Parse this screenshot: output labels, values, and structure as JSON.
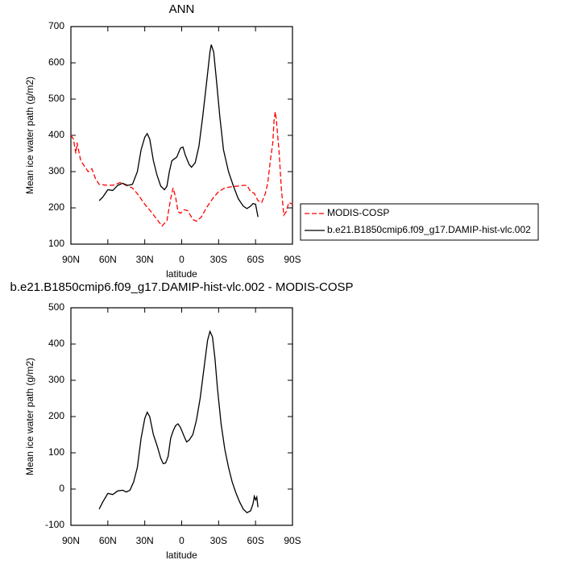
{
  "chart_data": [
    {
      "type": "line",
      "title": "ANN",
      "x_label": "latitude",
      "y_label": "Mean ice water path (g/m2)",
      "xlim": [
        90,
        -90
      ],
      "xticks": [
        {
          "value": 90,
          "label": "90N"
        },
        {
          "value": 60,
          "label": "60N"
        },
        {
          "value": 30,
          "label": "30N"
        },
        {
          "value": 0,
          "label": "0"
        },
        {
          "value": -30,
          "label": "30S"
        },
        {
          "value": -60,
          "label": "60S"
        },
        {
          "value": -90,
          "label": "90S"
        }
      ],
      "ylim": [
        100,
        700
      ],
      "yticks": [
        100,
        200,
        300,
        400,
        500,
        600,
        700
      ],
      "legend": "outside-right",
      "series": [
        {
          "name": "MODIS-COSP",
          "color": "#ff0000",
          "line_style": "dashed",
          "x": [
            90,
            88,
            86,
            85,
            82,
            80,
            76,
            73,
            70,
            67,
            60,
            55,
            50,
            45,
            40,
            35,
            30,
            25,
            20,
            16,
            12,
            9,
            7,
            5,
            3,
            1,
            -2,
            -5,
            -9,
            -12,
            -16,
            -20,
            -25,
            -30,
            -35,
            -40,
            -45,
            -50,
            -53,
            -56,
            -59,
            -62,
            -65,
            -68,
            -70,
            -72,
            -74,
            -75,
            -76,
            -77,
            -79,
            -81,
            -83,
            -85,
            -87,
            -90
          ],
          "values": [
            400,
            390,
            350,
            380,
            330,
            320,
            300,
            308,
            280,
            265,
            262,
            263,
            270,
            262,
            255,
            235,
            210,
            190,
            168,
            150,
            165,
            225,
            255,
            230,
            190,
            185,
            195,
            192,
            168,
            163,
            175,
            200,
            225,
            245,
            255,
            258,
            260,
            262,
            262,
            245,
            240,
            220,
            215,
            240,
            270,
            330,
            380,
            440,
            465,
            440,
            360,
            250,
            180,
            190,
            215,
            210
          ]
        },
        {
          "name": "b.e21.B1850cmip6.f09_g17.DAMIP-hist-vlc.002",
          "color": "#000000",
          "line_style": "solid",
          "x": [
            67,
            64,
            60,
            56,
            52,
            48,
            44,
            40,
            36,
            33,
            30,
            28,
            26,
            23,
            20,
            17,
            14,
            12,
            10,
            8,
            6,
            4,
            1,
            -1,
            -3,
            -6,
            -8,
            -11,
            -14,
            -17,
            -20,
            -23,
            -24,
            -26,
            -28,
            -31,
            -34,
            -38,
            -42,
            -46,
            -50,
            -53,
            -56,
            -58,
            -60,
            -62
          ],
          "values": [
            220,
            230,
            250,
            248,
            262,
            268,
            262,
            265,
            300,
            360,
            395,
            405,
            390,
            330,
            290,
            260,
            250,
            260,
            300,
            330,
            335,
            340,
            365,
            368,
            345,
            320,
            312,
            325,
            370,
            450,
            540,
            630,
            650,
            630,
            560,
            450,
            360,
            300,
            260,
            225,
            205,
            198,
            205,
            212,
            210,
            175
          ]
        }
      ]
    },
    {
      "type": "line",
      "title": "b.e21.B1850cmip6.f09_g17.DAMIP-hist-vlc.002 - MODIS-COSP",
      "x_label": "latitude",
      "y_label": "Mean ice water path (g/m2)",
      "xlim": [
        90,
        -90
      ],
      "xticks": [
        {
          "value": 90,
          "label": "90N"
        },
        {
          "value": 60,
          "label": "60N"
        },
        {
          "value": 30,
          "label": "30N"
        },
        {
          "value": 0,
          "label": "0"
        },
        {
          "value": -30,
          "label": "30S"
        },
        {
          "value": -60,
          "label": "60S"
        },
        {
          "value": -90,
          "label": "90S"
        }
      ],
      "ylim": [
        -100,
        500
      ],
      "yticks": [
        -100,
        0,
        100,
        200,
        300,
        400,
        500
      ],
      "series": [
        {
          "color": "#000000",
          "line_style": "solid",
          "x": [
            67,
            64,
            60,
            56,
            52,
            48,
            45,
            42,
            39,
            36,
            33,
            30,
            28,
            26,
            23,
            20,
            17,
            15,
            13,
            11,
            9,
            7,
            5,
            3,
            1,
            -2,
            -4,
            -6,
            -9,
            -12,
            -15,
            -18,
            -21,
            -23,
            -25,
            -27,
            -29,
            -32,
            -35,
            -38,
            -41,
            -44,
            -47,
            -50,
            -53,
            -56,
            -58,
            -59,
            -60,
            -61,
            -62
          ],
          "values": [
            -55,
            -35,
            -12,
            -15,
            -5,
            -3,
            -8,
            -3,
            20,
            60,
            140,
            195,
            212,
            200,
            150,
            120,
            85,
            70,
            72,
            90,
            140,
            160,
            175,
            180,
            170,
            145,
            130,
            135,
            150,
            190,
            250,
            330,
            410,
            435,
            420,
            360,
            280,
            180,
            110,
            60,
            20,
            -10,
            -35,
            -55,
            -65,
            -60,
            -40,
            -20,
            -30,
            -22,
            -50
          ]
        }
      ]
    }
  ]
}
